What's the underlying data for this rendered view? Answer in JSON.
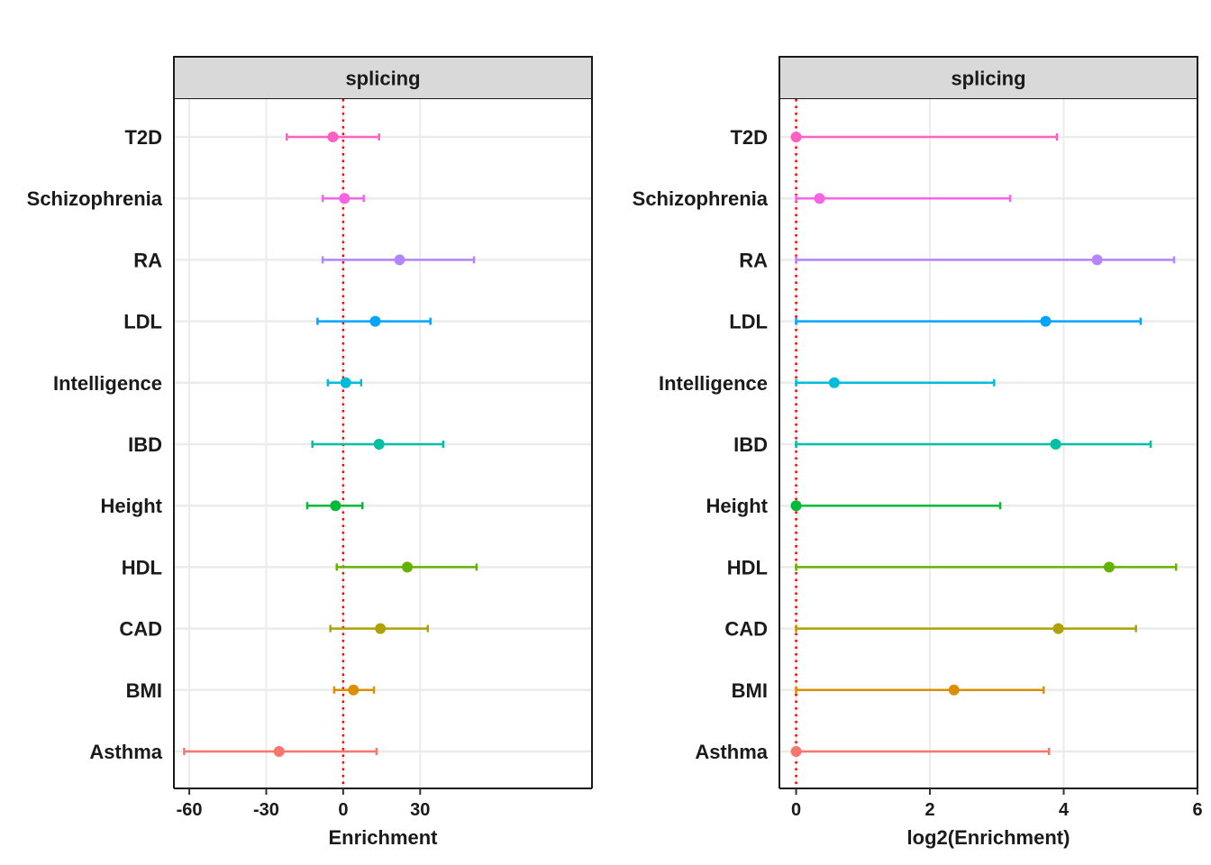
{
  "categories": [
    "T2D",
    "Schizophrenia",
    "RA",
    "LDL",
    "Intelligence",
    "IBD",
    "Height",
    "HDL",
    "CAD",
    "BMI",
    "Asthma"
  ],
  "colors": {
    "T2D": "#FF61C3",
    "Schizophrenia": "#F564E3",
    "RA": "#B385FF",
    "LDL": "#00A5FF",
    "Intelligence": "#00BCD8",
    "IBD": "#00BFA4",
    "Height": "#00BA38",
    "HDL": "#64B200",
    "CAD": "#AEA200",
    "BMI": "#DB8E00",
    "Asthma": "#F8766D"
  },
  "reference_line_color": "#FF0000",
  "chart_data": [
    {
      "type": "scatter",
      "subtype": "point-errorbar",
      "strip": "splicing",
      "xlabel": "Enrichment",
      "ylabel": "",
      "xlim": [
        -66,
        97
      ],
      "xticks": [
        -60,
        -30,
        0,
        30
      ],
      "reference_x": 0,
      "grid": true,
      "points": [
        {
          "category": "T2D",
          "estimate": -4,
          "low": -22,
          "high": 14
        },
        {
          "category": "Schizophrenia",
          "estimate": 0.5,
          "low": -8,
          "high": 8
        },
        {
          "category": "RA",
          "estimate": 22,
          "low": -8,
          "high": 51
        },
        {
          "category": "LDL",
          "estimate": 12.5,
          "low": -10,
          "high": 34
        },
        {
          "category": "Intelligence",
          "estimate": 1,
          "low": -6,
          "high": 7
        },
        {
          "category": "IBD",
          "estimate": 14,
          "low": -12,
          "high": 39
        },
        {
          "category": "Height",
          "estimate": -3,
          "low": -14,
          "high": 7.5
        },
        {
          "category": "HDL",
          "estimate": 25,
          "low": -2.5,
          "high": 52
        },
        {
          "category": "CAD",
          "estimate": 14.5,
          "low": -5,
          "high": 33
        },
        {
          "category": "BMI",
          "estimate": 4,
          "low": -3.5,
          "high": 12
        },
        {
          "category": "Asthma",
          "estimate": -25,
          "low": -62,
          "high": 13
        }
      ]
    },
    {
      "type": "scatter",
      "subtype": "point-errorbar",
      "strip": "splicing",
      "xlabel": "log2(Enrichment)",
      "ylabel": "",
      "xlim": [
        -0.25,
        6.0
      ],
      "xticks": [
        0,
        2,
        4,
        6
      ],
      "reference_x": 0,
      "grid": true,
      "points": [
        {
          "category": "T2D",
          "estimate": 0,
          "low": 0,
          "high": 3.9
        },
        {
          "category": "Schizophrenia",
          "estimate": 0.35,
          "low": 0,
          "high": 3.2
        },
        {
          "category": "RA",
          "estimate": 4.5,
          "low": 0,
          "high": 5.65
        },
        {
          "category": "LDL",
          "estimate": 3.73,
          "low": 0,
          "high": 5.15
        },
        {
          "category": "Intelligence",
          "estimate": 0.57,
          "low": 0,
          "high": 2.96
        },
        {
          "category": "IBD",
          "estimate": 3.88,
          "low": 0,
          "high": 5.3
        },
        {
          "category": "Height",
          "estimate": 0,
          "low": 0,
          "high": 3.05
        },
        {
          "category": "HDL",
          "estimate": 4.68,
          "low": 0,
          "high": 5.68
        },
        {
          "category": "CAD",
          "estimate": 3.92,
          "low": 0,
          "high": 5.08
        },
        {
          "category": "BMI",
          "estimate": 2.36,
          "low": 0,
          "high": 3.7
        },
        {
          "category": "Asthma",
          "estimate": 0,
          "low": 0,
          "high": 3.78
        }
      ]
    }
  ]
}
